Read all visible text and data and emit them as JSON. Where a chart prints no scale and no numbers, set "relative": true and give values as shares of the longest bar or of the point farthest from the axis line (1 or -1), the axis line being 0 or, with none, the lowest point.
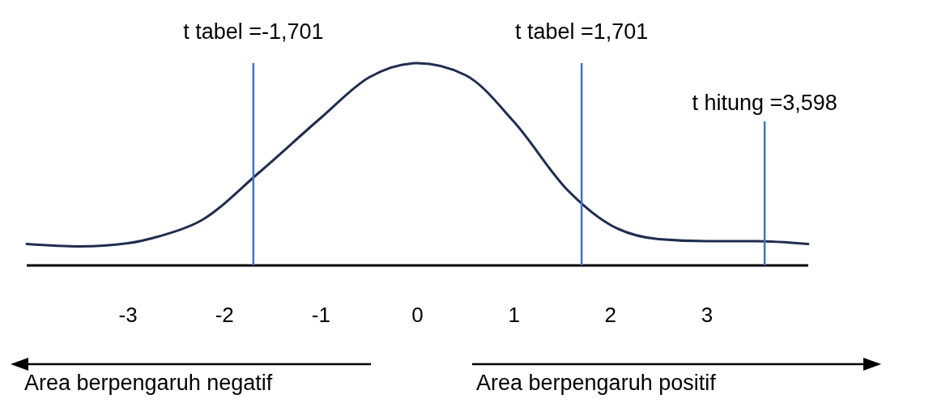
{
  "chart_data": {
    "type": "line",
    "relative": true,
    "x": [
      -4.05,
      -3.5,
      -3.0,
      -2.67,
      -2.25,
      -1.64,
      -1.0,
      -0.5,
      0,
      0.5,
      1.0,
      1.56,
      2.0,
      2.5,
      3.0,
      3.5,
      4.05
    ],
    "series": [
      {
        "color": "#1f2d4e",
        "values": [
          0.106,
          0.094,
          0.11,
          0.145,
          0.22,
          0.46,
          0.73,
          0.93,
          1,
          0.94,
          0.71,
          0.37,
          0.2,
          0.13,
          0.12,
          0.12,
          0.106
        ]
      }
    ],
    "xlim": [
      -4.05,
      4.05
    ],
    "xticks": [
      -3,
      -2,
      -1,
      0,
      1,
      2,
      3
    ],
    "grid": false,
    "marker": "none",
    "line_style": "solid",
    "ref_lines": [
      {
        "axis": "x",
        "value": -1.701,
        "label": "t tabel =-1,701",
        "color": "#4472c4"
      },
      {
        "axis": "x",
        "value": 1.701,
        "label": "t tabel =1,701",
        "color": "#4472c4"
      },
      {
        "axis": "x",
        "value": 3.598,
        "label": "t hitung =3,598",
        "color": "#4472c4"
      }
    ],
    "annotations": [
      "Area berpengaruh negatif",
      "Area berpengaruh positif"
    ]
  }
}
